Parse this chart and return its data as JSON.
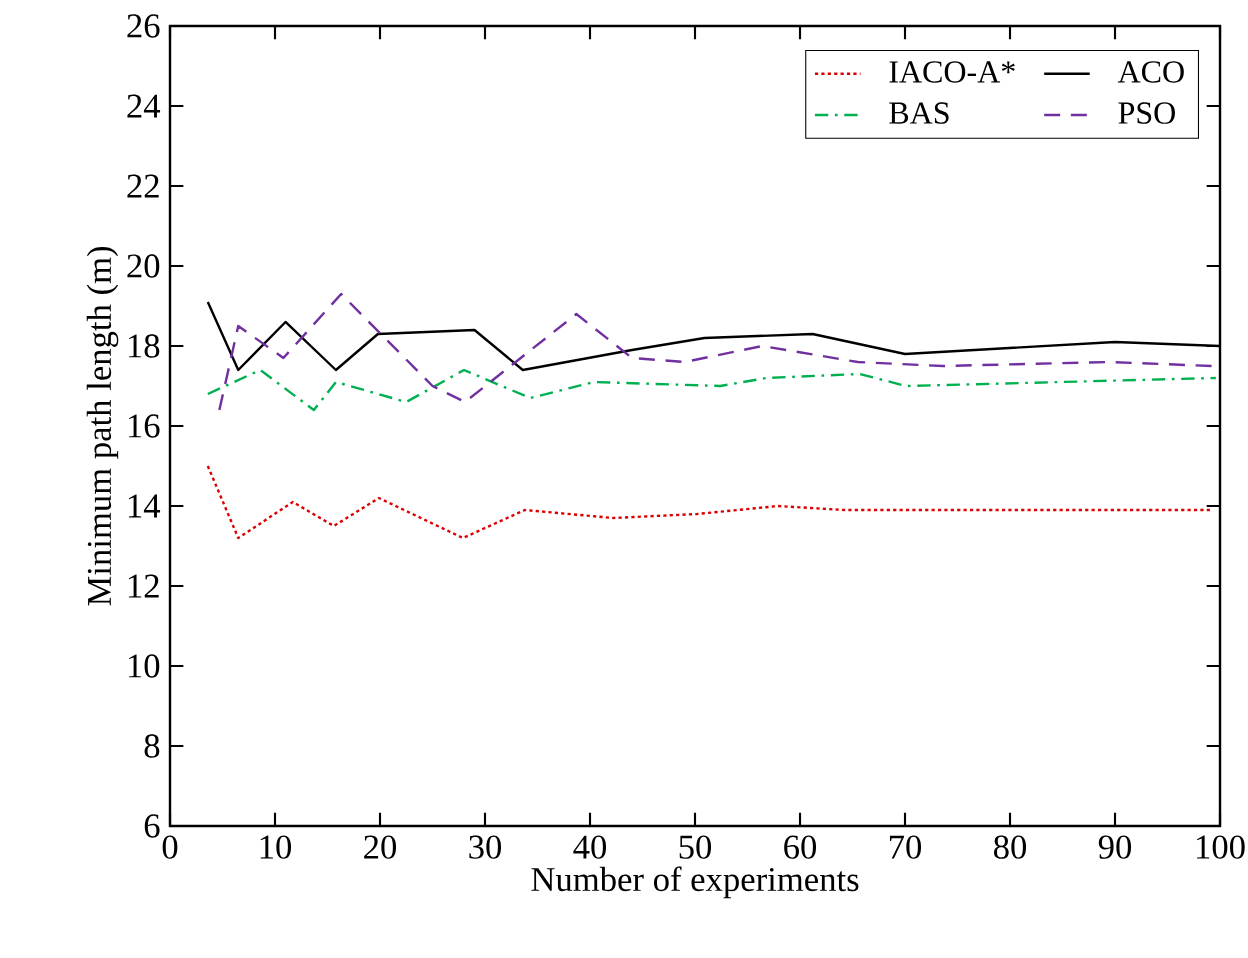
{
  "chart_data": {
    "type": "line",
    "xlabel": "Number of experiments",
    "ylabel": "Minimum path length (m)",
    "xlim": [
      0,
      100
    ],
    "xticks": [
      0,
      10,
      20,
      30,
      40,
      50,
      60,
      70,
      80,
      90,
      100
    ],
    "ylim": [
      6,
      26
    ],
    "yticks": [
      6,
      8,
      10,
      12,
      14,
      16,
      18,
      20,
      22,
      24,
      26
    ],
    "grid": false,
    "legend": "top right",
    "marker": "none",
    "series": [
      {
        "name": "IACO-A*",
        "color": "#dd0000",
        "line_style": "dotted",
        "x": [
          3.6,
          6.5,
          11.7,
          15.6,
          19.9,
          27.9,
          33.8,
          42.2,
          50.2,
          57.9,
          64.2,
          99.2
        ],
        "values": [
          15.0,
          13.2,
          14.1,
          13.5,
          14.2,
          13.2,
          13.9,
          13.7,
          13.8,
          14.0,
          13.9,
          13.9
        ]
      },
      {
        "name": "ACO",
        "color": "#000000",
        "line_style": "solid",
        "x": [
          3.6,
          6.5,
          11.0,
          15.8,
          19.8,
          29.0,
          33.6,
          44,
          50.9,
          61.2,
          70.0,
          90,
          100
        ],
        "values": [
          19.1,
          17.4,
          18.6,
          17.4,
          18.3,
          18.4,
          17.4,
          17.9,
          18.2,
          18.3,
          17.8,
          18.1,
          18.0
        ]
      },
      {
        "name": "BAS",
        "color": "#00b050",
        "line_style": "dashdot",
        "x": [
          3.6,
          8.6,
          13.7,
          15.8,
          22.5,
          28,
          34.3,
          40.4,
          52.4,
          56.8,
          65.7,
          70.1,
          99.6
        ],
        "values": [
          16.8,
          17.4,
          16.4,
          17.1,
          16.6,
          17.4,
          16.7,
          17.1,
          17.0,
          17.2,
          17.3,
          17.0,
          17.2
        ]
      },
      {
        "name": "PSO",
        "color": "#7030a0",
        "line_style": "dashed",
        "x": [
          4.7,
          6.5,
          10.8,
          16.3,
          25,
          28.1,
          38.7,
          44,
          49,
          56.4,
          65.5,
          73.6,
          89.6,
          99.2
        ],
        "values": [
          16.4,
          18.5,
          17.7,
          19.3,
          17.0,
          16.6,
          18.8,
          17.7,
          17.6,
          18.0,
          17.6,
          17.5,
          17.6,
          17.5
        ]
      }
    ]
  }
}
